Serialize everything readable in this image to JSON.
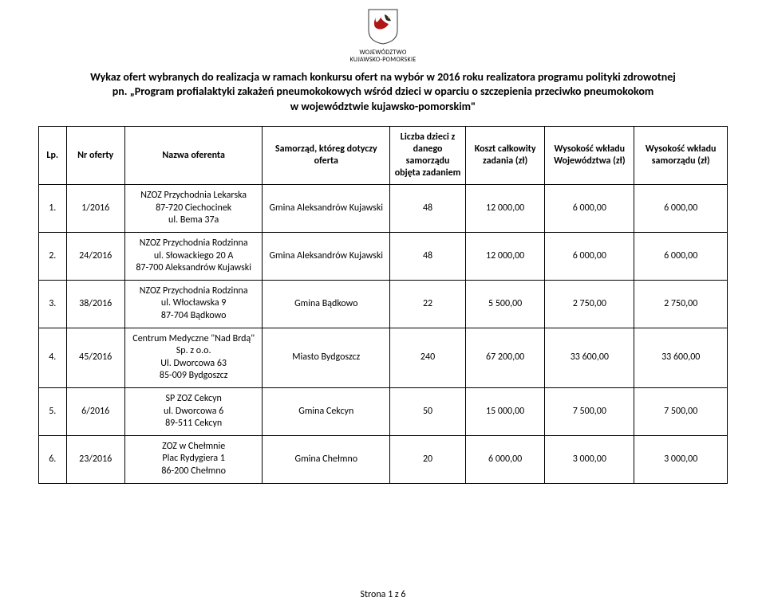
{
  "header": {
    "org_line1": "WOJEWÓDZTWO",
    "org_line2": "KUJAWSKO-POMORSKIE",
    "title_line1": "Wykaz ofert wybranych do realizacja w ramach konkursu ofert na wybór w 2016 roku realizatora programu polityki zdrowotnej",
    "title_line2": "pn. „Program profialaktyki zakażeń pneumokokowych wśród dzieci w oparciu o szczepienia przeciwko pneumokokom",
    "title_line3": "w województwie kujawsko-pomorskim\""
  },
  "columns": {
    "lp": "Lp.",
    "nr": "Nr oferty",
    "name": "Nazwa oferenta",
    "sam": "Samorząd, któreg dotyczy oferta",
    "licz": "Liczba dzieci z danego samorządu objęta zadaniem",
    "koszt": "Koszt całkowity zadania (zł)",
    "woj": "Wysokość wkładu Województwa (zł)",
    "wklad": "Wysokość wkładu samorządu (zł)"
  },
  "rows": [
    {
      "lp": "1.",
      "nr": "1/2016",
      "name_l1": "NZOZ  Przychodnia Lekarska",
      "name_l2": "87-720 Ciechocinek",
      "name_l3": "ul. Bema 37a",
      "sam": "Gmina Aleksandrów Kujawski",
      "licz": "48",
      "koszt": "12 000,00",
      "woj": "6 000,00",
      "wklad": "6 000,00"
    },
    {
      "lp": "2.",
      "nr": "24/2016",
      "name_l1": "NZOZ Przychodnia Rodzinna",
      "name_l2": "ul. Słowackiego 20 A",
      "name_l3": "87-700 Aleksandrów Kujawski",
      "sam": "Gmina Aleksandrów Kujawski",
      "licz": "48",
      "koszt": "12 000,00",
      "woj": "6 000,00",
      "wklad": "6 000,00"
    },
    {
      "lp": "3.",
      "nr": "38/2016",
      "name_l1": "NZOZ Przychodnia Rodzinna",
      "name_l2": "ul. Włocławska 9",
      "name_l3": "87-704 Bądkowo",
      "sam": "Gmina Bądkowo",
      "licz": "22",
      "koszt": "5 500,00",
      "woj": "2 750,00",
      "wklad": "2 750,00"
    },
    {
      "lp": "4.",
      "nr": "45/2016",
      "name_l1": "Centrum Medyczne \"Nad Brdą\"",
      "name_l2": "Sp. z o.o.",
      "name_l3": "Ul. Dworcowa 63",
      "name_l4": "85-009 Bydgoszcz",
      "sam": "Miasto Bydgoszcz",
      "licz": "240",
      "koszt": "67 200,00",
      "woj": "33 600,00",
      "wklad": "33 600,00"
    },
    {
      "lp": "5.",
      "nr": "6/2016",
      "name_l1": "SP ZOZ Cekcyn",
      "name_l2": "ul. Dworcowa 6",
      "name_l3": "89-511 Cekcyn",
      "sam": "Gmina Cekcyn",
      "licz": "50",
      "koszt": "15 000,00",
      "woj": "7 500,00",
      "wklad": "7 500,00"
    },
    {
      "lp": "6.",
      "nr": "23/2016",
      "name_l1": "ZOZ w Chełmnie",
      "name_l2": "Plac Rydygiera 1",
      "name_l3": "86-200 Chełmno",
      "sam": "Gmina Chełmno",
      "licz": "20",
      "koszt": "6 000,00",
      "woj": "3 000,00",
      "wklad": "3 000,00"
    }
  ],
  "footer": "Strona 1 z 6"
}
